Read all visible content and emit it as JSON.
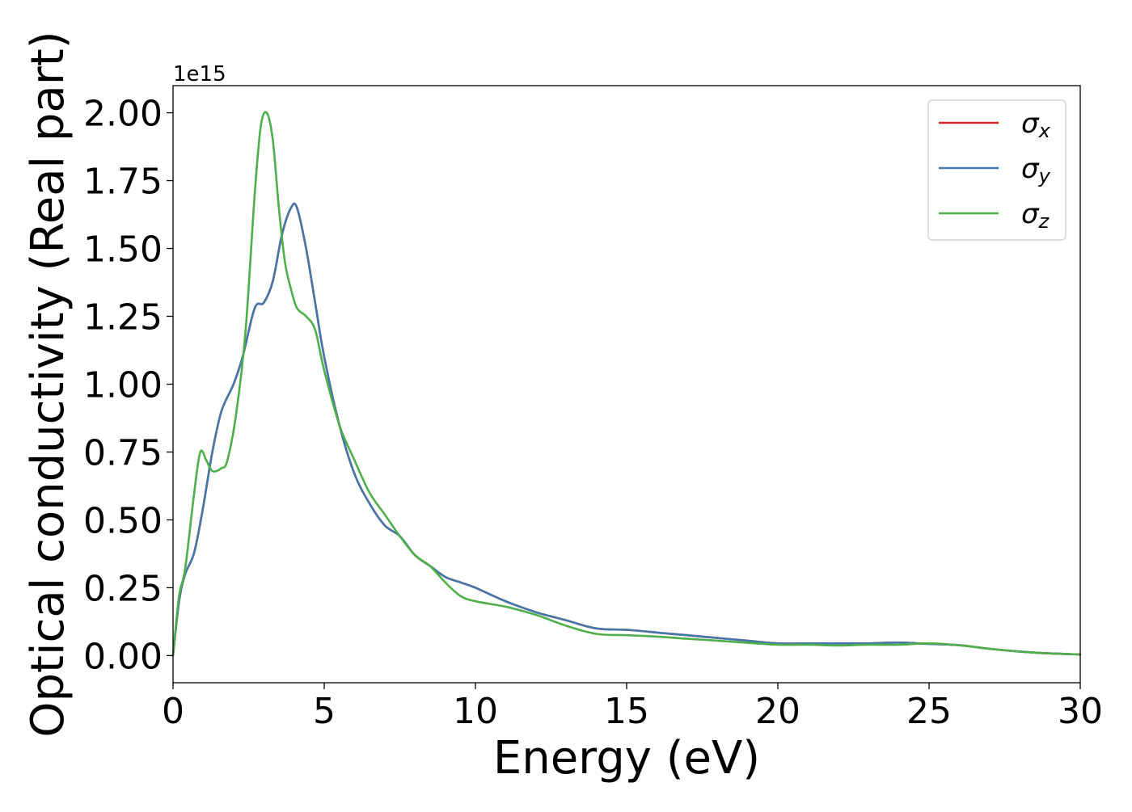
{
  "chart_data": {
    "type": "line",
    "xlabel": "Energy (eV)",
    "ylabel": "Optical conductivity (Real part)",
    "y_offset_label": "1e15",
    "xlim": [
      0,
      30
    ],
    "ylim": [
      -0.1,
      2.1
    ],
    "x_ticks": [
      0,
      5,
      10,
      15,
      20,
      25,
      30
    ],
    "x_tick_labels": [
      "0",
      "5",
      "10",
      "15",
      "20",
      "25",
      "30"
    ],
    "y_ticks": [
      0.0,
      0.25,
      0.5,
      0.75,
      1.0,
      1.25,
      1.5,
      1.75,
      2.0
    ],
    "y_tick_labels": [
      "0.00",
      "0.25",
      "0.50",
      "0.75",
      "1.00",
      "1.25",
      "1.50",
      "1.75",
      "2.00"
    ],
    "grid": false,
    "legend_position": "top-right",
    "series": [
      {
        "name": "σx",
        "symbol": "σ",
        "subscript": "x",
        "color": "#d62728",
        "x": [
          0,
          0.2,
          0.4,
          0.7,
          1.0,
          1.3,
          1.6,
          2.0,
          2.3,
          2.7,
          3.0,
          3.3,
          3.6,
          3.9,
          4.1,
          4.4,
          4.7,
          5.0,
          5.5,
          6.0,
          6.5,
          7.0,
          7.5,
          8.0,
          8.5,
          9.0,
          9.5,
          10.0,
          11.0,
          12.0,
          13.0,
          14.0,
          15.0,
          16.0,
          17.0,
          18.0,
          19.0,
          20.0,
          21.0,
          22.0,
          23.0,
          24.0,
          25.0,
          26.0,
          27.0,
          28.0,
          29.0,
          30.0
        ],
        "values": [
          0.0,
          0.2,
          0.3,
          0.38,
          0.55,
          0.75,
          0.9,
          1.0,
          1.1,
          1.28,
          1.3,
          1.38,
          1.55,
          1.65,
          1.65,
          1.5,
          1.3,
          1.1,
          0.85,
          0.67,
          0.56,
          0.48,
          0.44,
          0.37,
          0.33,
          0.29,
          0.27,
          0.25,
          0.2,
          0.16,
          0.13,
          0.1,
          0.095,
          0.085,
          0.075,
          0.065,
          0.055,
          0.045,
          0.045,
          0.045,
          0.045,
          0.048,
          0.043,
          0.038,
          0.025,
          0.015,
          0.008,
          0.004
        ]
      },
      {
        "name": "σy",
        "symbol": "σ",
        "subscript": "y",
        "color": "#4477aa",
        "x": [
          0,
          0.2,
          0.4,
          0.7,
          1.0,
          1.3,
          1.6,
          2.0,
          2.3,
          2.7,
          3.0,
          3.3,
          3.6,
          3.9,
          4.1,
          4.4,
          4.7,
          5.0,
          5.5,
          6.0,
          6.5,
          7.0,
          7.5,
          8.0,
          8.5,
          9.0,
          9.5,
          10.0,
          11.0,
          12.0,
          13.0,
          14.0,
          15.0,
          16.0,
          17.0,
          18.0,
          19.0,
          20.0,
          21.0,
          22.0,
          23.0,
          24.0,
          25.0,
          26.0,
          27.0,
          28.0,
          29.0,
          30.0
        ],
        "values": [
          0.0,
          0.2,
          0.3,
          0.38,
          0.55,
          0.75,
          0.9,
          1.0,
          1.1,
          1.28,
          1.3,
          1.38,
          1.55,
          1.65,
          1.65,
          1.5,
          1.3,
          1.1,
          0.85,
          0.67,
          0.56,
          0.48,
          0.44,
          0.37,
          0.33,
          0.29,
          0.27,
          0.25,
          0.2,
          0.16,
          0.13,
          0.1,
          0.095,
          0.085,
          0.075,
          0.065,
          0.055,
          0.045,
          0.045,
          0.045,
          0.045,
          0.048,
          0.043,
          0.038,
          0.025,
          0.015,
          0.008,
          0.004
        ]
      },
      {
        "name": "σz",
        "symbol": "σ",
        "subscript": "z",
        "color": "#4daf4a",
        "x": [
          0,
          0.2,
          0.4,
          0.7,
          0.9,
          1.1,
          1.3,
          1.6,
          1.8,
          2.1,
          2.4,
          2.7,
          2.9,
          3.1,
          3.3,
          3.5,
          3.7,
          3.9,
          4.1,
          4.4,
          4.7,
          5.0,
          5.5,
          6.0,
          6.5,
          7.0,
          7.5,
          8.0,
          8.5,
          9.0,
          9.5,
          10.0,
          11.0,
          12.0,
          13.0,
          14.0,
          15.0,
          16.0,
          17.0,
          18.0,
          19.0,
          20.0,
          21.0,
          22.0,
          23.0,
          24.0,
          25.0,
          26.0,
          27.0,
          28.0,
          29.0,
          30.0
        ],
        "values": [
          0.0,
          0.22,
          0.32,
          0.6,
          0.75,
          0.72,
          0.68,
          0.69,
          0.72,
          0.9,
          1.2,
          1.7,
          1.95,
          2.0,
          1.9,
          1.65,
          1.45,
          1.35,
          1.28,
          1.25,
          1.2,
          1.05,
          0.85,
          0.72,
          0.6,
          0.52,
          0.44,
          0.37,
          0.33,
          0.27,
          0.22,
          0.2,
          0.18,
          0.15,
          0.11,
          0.08,
          0.075,
          0.07,
          0.062,
          0.055,
          0.047,
          0.04,
          0.04,
          0.037,
          0.04,
          0.04,
          0.045,
          0.038,
          0.025,
          0.015,
          0.008,
          0.004
        ]
      }
    ]
  }
}
